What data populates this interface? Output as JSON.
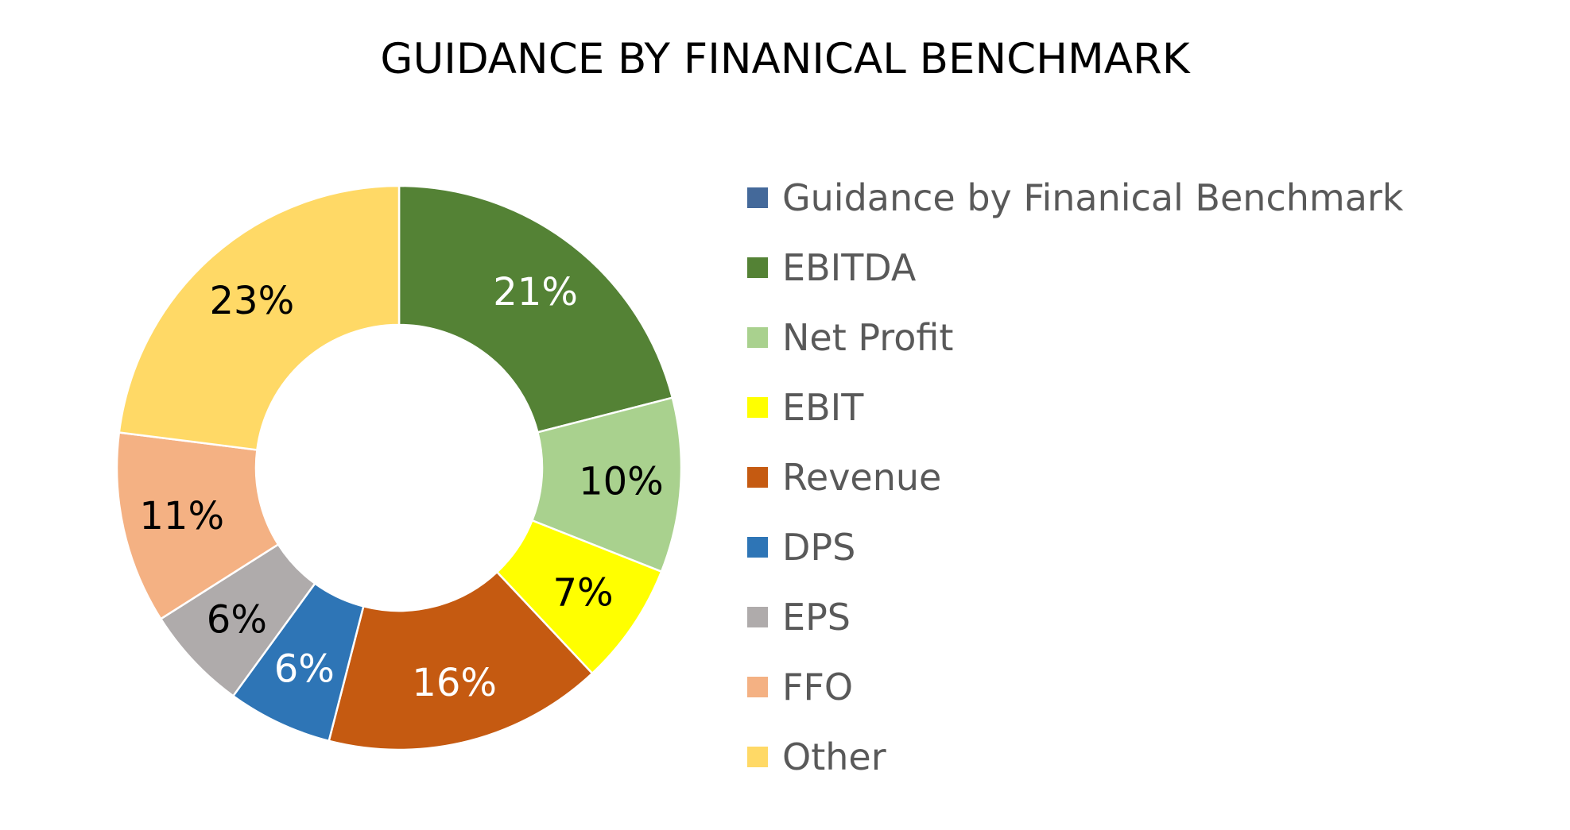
{
  "chart_data": {
    "type": "pie",
    "variant": "donut",
    "title": "GUIDANCE BY FINANICAL BENCHMARK",
    "legend_position": "right",
    "legend_header": {
      "label": "Guidance by Finanical Benchmark",
      "color": "#44699a"
    },
    "categories": [
      "EBITDA",
      "Net Profit",
      "EBIT",
      "Revenue",
      "DPS",
      "EPS",
      "FFO",
      "Other"
    ],
    "values": [
      21,
      10,
      7,
      16,
      6,
      6,
      11,
      23
    ],
    "data_labels": [
      "21%",
      "10%",
      "7%",
      "16%",
      "6%",
      "6%",
      "11%",
      "23%"
    ],
    "colors": [
      "#548235",
      "#a9d18e",
      "#ffff00",
      "#c55a11",
      "#2e75b6",
      "#afabab",
      "#f4b183",
      "#ffd966"
    ],
    "label_colors": [
      "#ffffff",
      "#000000",
      "#000000",
      "#ffffff",
      "#ffffff",
      "#000000",
      "#000000",
      "#000000"
    ]
  }
}
